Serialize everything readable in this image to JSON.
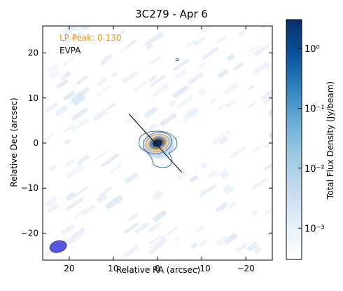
{
  "chart_data": {
    "type": "heatmap",
    "title": "3C279 - Apr 6",
    "xlabel": "Relative RA (arcsec)",
    "ylabel": "Relative Dec (arcsec)",
    "xlim": [
      26,
      -26
    ],
    "ylim": [
      -26,
      26
    ],
    "x_ticks": [
      20,
      10,
      0,
      -10,
      -20
    ],
    "x_tick_labels": [
      "20",
      "10",
      "0",
      "−10",
      "−20"
    ],
    "y_ticks": [
      20,
      10,
      0,
      -10,
      -20
    ],
    "y_tick_labels": [
      "20",
      "10",
      "0",
      "−10",
      "−20"
    ],
    "annotations": [
      {
        "text": "LP Peak: 0.130",
        "color": "#ff8c00"
      },
      {
        "text": "EVPA",
        "color": "#000000"
      }
    ],
    "evpa_line": {
      "x": [
        6.5,
        -5.5
      ],
      "y": [
        6.5,
        -6.5
      ]
    },
    "source_peak": {
      "x": 0,
      "y": 0
    },
    "beam": {
      "x": 22.5,
      "y": -23,
      "major": 2.4,
      "minor": 1.6,
      "pa_deg": 15,
      "color": "#5555dd"
    },
    "colorbar": {
      "label": "Total Flux Density (Jy/beam)",
      "scale": "log",
      "range": [
        0.0003,
        3.0
      ],
      "ticks": [
        1,
        0.1,
        0.01,
        0.001
      ],
      "tick_labels": [
        "10⁰",
        "10⁻¹",
        "10⁻²",
        "10⁻³"
      ],
      "cmap": [
        "#ffffff",
        "#e6effa",
        "#c6dbef",
        "#9ecae1",
        "#6baed6",
        "#3182bd",
        "#08519c",
        "#08306b"
      ]
    }
  }
}
